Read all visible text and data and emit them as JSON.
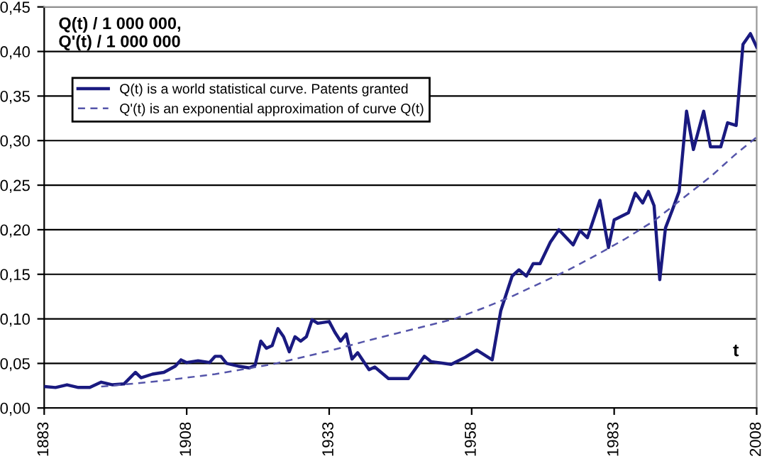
{
  "chart_data": {
    "type": "line",
    "ylabel": "Q(t) / 1 000 000,\nQ'(t) / 1 000 000",
    "xlabel": "t",
    "xlim": [
      1883,
      2008
    ],
    "xticks": [
      1883,
      1908,
      1933,
      1958,
      1983,
      2008
    ],
    "ylim": [
      0,
      0.45
    ],
    "yticks": [
      {
        "value": 0,
        "label": "0,00"
      },
      {
        "value": 0.05,
        "label": "0,05"
      },
      {
        "value": 0.1,
        "label": "0,10"
      },
      {
        "value": 0.15,
        "label": "0,15"
      },
      {
        "value": 0.2,
        "label": "0,20"
      },
      {
        "value": 0.25,
        "label": "0,25"
      },
      {
        "value": 0.3,
        "label": "0,30"
      },
      {
        "value": 0.35,
        "label": "0,35"
      },
      {
        "value": 0.4,
        "label": "0,40"
      },
      {
        "value": 0.45,
        "label": "0,45"
      }
    ],
    "grid": "y",
    "legend": "top left",
    "series": [
      {
        "name": "Q(t) is a world statistical curve. Patents granted",
        "color": "#1a1a80",
        "line_style": "solid",
        "x": [
          1883,
          1885,
          1887,
          1889,
          1891,
          1893,
          1895,
          1897,
          1899,
          1900,
          1902,
          1904,
          1906,
          1907,
          1908,
          1910,
          1912,
          1913,
          1914,
          1915,
          1917,
          1919,
          1920,
          1921,
          1922,
          1923,
          1924,
          1925,
          1926,
          1927,
          1928,
          1929,
          1930,
          1931,
          1933,
          1934,
          1935,
          1936,
          1937,
          1938,
          1940,
          1941,
          1943.4,
          1946.9,
          1949.7,
          1950.9,
          1954.4,
          1956.9,
          1958.9,
          1961.6,
          1963.1,
          1965.1,
          1966.3,
          1967.6,
          1968.8,
          1970,
          1971.8,
          1973.3,
          1975.8,
          1977,
          1978.3,
          1980.5,
          1982,
          1983,
          1985.5,
          1986.7,
          1988,
          1989,
          1990,
          1991,
          1992,
          1993.2,
          1994.4,
          1995.7,
          1996.9,
          1998.7,
          1999.9,
          2001.7,
          2002.9,
          2004.4,
          2005.6,
          2006.9,
          2008
        ],
        "values": [
          0.024,
          0.023,
          0.026,
          0.023,
          0.023,
          0.029,
          0.026,
          0.027,
          0.04,
          0.034,
          0.038,
          0.04,
          0.047,
          0.054,
          0.051,
          0.053,
          0.051,
          0.058,
          0.058,
          0.05,
          0.047,
          0.045,
          0.048,
          0.075,
          0.067,
          0.07,
          0.089,
          0.08,
          0.063,
          0.08,
          0.075,
          0.08,
          0.099,
          0.095,
          0.097,
          0.085,
          0.075,
          0.083,
          0.055,
          0.062,
          0.043,
          0.046,
          0.033,
          0.033,
          0.058,
          0.052,
          0.049,
          0.057,
          0.065,
          0.054,
          0.109,
          0.148,
          0.155,
          0.148,
          0.162,
          0.162,
          0.186,
          0.2,
          0.183,
          0.199,
          0.191,
          0.233,
          0.18,
          0.211,
          0.219,
          0.241,
          0.23,
          0.243,
          0.227,
          0.144,
          0.202,
          0.222,
          0.243,
          0.333,
          0.29,
          0.333,
          0.293,
          0.293,
          0.32,
          0.317,
          0.408,
          0.42,
          0.405
        ]
      },
      {
        "name": "Q'(t) is an exponential approximation of curve Q(t)",
        "color": "#5555aa",
        "line_style": "dashed",
        "x": [
          1893,
          1903,
          1913,
          1923,
          1933,
          1940,
          1945,
          1950,
          1955,
          1960,
          1965,
          1970,
          1975,
          1980,
          1985,
          1990,
          1995,
          2000,
          2004,
          2008
        ],
        "values": [
          0.024,
          0.03,
          0.038,
          0.049,
          0.064,
          0.076,
          0.084,
          0.092,
          0.1,
          0.112,
          0.125,
          0.14,
          0.155,
          0.172,
          0.19,
          0.21,
          0.235,
          0.26,
          0.283,
          0.304
        ]
      }
    ]
  }
}
